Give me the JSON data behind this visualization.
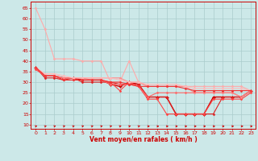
{
  "xlabel": "Vent moyen/en rafales ( km/h )",
  "bg_color": "#cce8e8",
  "grid_color": "#aacccc",
  "x_ticks": [
    0,
    1,
    2,
    3,
    4,
    5,
    6,
    7,
    8,
    9,
    10,
    11,
    12,
    13,
    14,
    15,
    16,
    17,
    18,
    19,
    20,
    21,
    22,
    23
  ],
  "y_ticks": [
    10,
    15,
    20,
    25,
    30,
    35,
    40,
    45,
    50,
    55,
    60,
    65
  ],
  "xlim": [
    -0.5,
    23.5
  ],
  "ylim": [
    8,
    68
  ],
  "lines": [
    {
      "x": [
        0,
        1,
        2,
        3,
        4,
        5,
        6,
        7,
        8,
        9,
        10,
        11,
        12,
        13,
        14,
        15,
        16,
        17,
        18,
        19,
        20,
        21,
        22,
        23
      ],
      "y": [
        65,
        55,
        41,
        41,
        41,
        40,
        40,
        40,
        30,
        30,
        40,
        30,
        28,
        28,
        28,
        28,
        28,
        28,
        28,
        28,
        28,
        28,
        28,
        26
      ],
      "color": "#ffaaaa",
      "lw": 0.8,
      "marker": "D",
      "ms": 1.5
    },
    {
      "x": [
        0,
        1,
        2,
        3,
        4,
        5,
        6,
        7,
        8,
        9,
        10,
        11,
        12,
        13,
        14,
        15,
        16,
        17,
        18,
        19,
        20,
        21,
        22,
        23
      ],
      "y": [
        37,
        33,
        33,
        32,
        32,
        31,
        31,
        31,
        29,
        28,
        30,
        29,
        23,
        23,
        23,
        15,
        15,
        15,
        15,
        23,
        23,
        23,
        23,
        26
      ],
      "color": "#cc0000",
      "lw": 1.0,
      "marker": "D",
      "ms": 2.0
    },
    {
      "x": [
        0,
        1,
        2,
        3,
        4,
        5,
        6,
        7,
        8,
        9,
        10,
        11,
        12,
        13,
        14,
        15,
        16,
        17,
        18,
        19,
        20,
        21,
        22,
        23
      ],
      "y": [
        37,
        32,
        32,
        31,
        32,
        30,
        30,
        30,
        30,
        29,
        29,
        29,
        23,
        23,
        23,
        15,
        15,
        15,
        15,
        15,
        23,
        23,
        23,
        26
      ],
      "color": "#dd2222",
      "lw": 0.8,
      "marker": "D",
      "ms": 1.5
    },
    {
      "x": [
        0,
        1,
        2,
        3,
        4,
        5,
        6,
        7,
        8,
        9,
        10,
        11,
        12,
        13,
        14,
        15,
        16,
        17,
        18,
        19,
        20,
        21,
        22,
        23
      ],
      "y": [
        36,
        33,
        33,
        31,
        31,
        31,
        31,
        31,
        30,
        26,
        30,
        28,
        22,
        22,
        15,
        15,
        15,
        15,
        15,
        22,
        22,
        22,
        22,
        25
      ],
      "color": "#ff4444",
      "lw": 0.8,
      "marker": "D",
      "ms": 1.5
    },
    {
      "x": [
        0,
        1,
        2,
        3,
        4,
        5,
        6,
        7,
        8,
        9,
        10,
        11,
        12,
        13,
        14,
        15,
        16,
        17,
        18,
        19,
        20,
        21,
        22,
        23
      ],
      "y": [
        37,
        33,
        33,
        32,
        32,
        32,
        31,
        31,
        29,
        29,
        29,
        28,
        23,
        25,
        25,
        25,
        25,
        25,
        25,
        25,
        25,
        25,
        23,
        26
      ],
      "color": "#ff6666",
      "lw": 0.8,
      "marker": "D",
      "ms": 1.5
    },
    {
      "x": [
        0,
        1,
        2,
        3,
        4,
        5,
        6,
        7,
        8,
        9,
        10,
        11,
        12,
        13,
        14,
        15,
        16,
        17,
        18,
        19,
        20,
        21,
        22,
        23
      ],
      "y": [
        37,
        33,
        33,
        32,
        32,
        32,
        32,
        32,
        32,
        32,
        30,
        30,
        28,
        28,
        28,
        28,
        28,
        25,
        25,
        25,
        25,
        25,
        23,
        26
      ],
      "color": "#ff8888",
      "lw": 0.8,
      "marker": "D",
      "ms": 1.5
    },
    {
      "x": [
        0,
        1,
        2,
        3,
        4,
        5,
        6,
        7,
        8,
        9,
        10,
        11,
        12,
        13,
        14,
        15,
        16,
        17,
        18,
        19,
        20,
        21,
        22,
        23
      ],
      "y": [
        37,
        34,
        34,
        33,
        32,
        32,
        32,
        32,
        32,
        31,
        30,
        30,
        29,
        29,
        29,
        29,
        28,
        27,
        27,
        27,
        27,
        27,
        27,
        26
      ],
      "color": "#ffbbbb",
      "lw": 0.8,
      "marker": "D",
      "ms": 1.5
    },
    {
      "x": [
        0,
        1,
        2,
        3,
        4,
        5,
        6,
        7,
        8,
        9,
        10,
        11,
        12,
        13,
        14,
        15,
        16,
        17,
        18,
        19,
        20,
        21,
        22,
        23
      ],
      "y": [
        37,
        33,
        33,
        31,
        31,
        31,
        31,
        31,
        30,
        30,
        29,
        28,
        28,
        28,
        28,
        28,
        27,
        26,
        26,
        26,
        26,
        26,
        26,
        26
      ],
      "color": "#ee3333",
      "lw": 0.8,
      "marker": "D",
      "ms": 1.5
    }
  ],
  "arrow_x_diagonal": [
    0,
    1,
    2,
    3,
    4,
    5,
    6,
    7,
    8,
    9,
    10,
    11
  ],
  "arrow_x_horizontal": [
    12,
    13,
    14,
    15,
    16,
    17,
    18,
    19,
    20,
    21,
    22,
    23
  ]
}
